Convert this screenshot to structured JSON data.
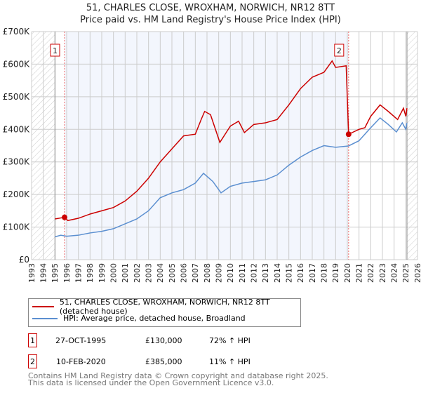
{
  "chart_data": {
    "type": "line",
    "title": "51, CHARLES CLOSE, WROXHAM, NORWICH, NR12 8TT",
    "subtitle": "Price paid vs. HM Land Registry's House Price Index (HPI)",
    "xlim": [
      1993,
      2026
    ],
    "ylim": [
      0,
      700000
    ],
    "x_ticks": [
      "1993",
      "1994",
      "1995",
      "1996",
      "1997",
      "1998",
      "1999",
      "2000",
      "2001",
      "2002",
      "2003",
      "2004",
      "2005",
      "2006",
      "2007",
      "2008",
      "2009",
      "2010",
      "2011",
      "2012",
      "2013",
      "2014",
      "2015",
      "2016",
      "2017",
      "2018",
      "2019",
      "2020",
      "2021",
      "2022",
      "2023",
      "2024",
      "2025",
      "2026"
    ],
    "y_ticks": [
      {
        "v": 0,
        "label": "£0"
      },
      {
        "v": 100000,
        "label": "£100K"
      },
      {
        "v": 200000,
        "label": "£200K"
      },
      {
        "v": 300000,
        "label": "£300K"
      },
      {
        "v": 400000,
        "label": "£400K"
      },
      {
        "v": 500000,
        "label": "£500K"
      },
      {
        "v": 600000,
        "label": "£600K"
      },
      {
        "v": 700000,
        "label": "£700K"
      }
    ],
    "grid": true,
    "series": [
      {
        "name": "51, CHARLES CLOSE, WROXHAM, NORWICH, NR12 8TT (detached house)",
        "color": "#cc0000",
        "x": [
          1995.0,
          1995.5,
          1995.82,
          1996.1,
          1997,
          1998,
          1999,
          2000,
          2001,
          2002,
          2003,
          2004,
          2005,
          2006,
          2007,
          2007.5,
          2007.8,
          2008.3,
          2009.1,
          2010,
          2010.7,
          2011.2,
          2012,
          2013,
          2014,
          2015,
          2016,
          2017,
          2018,
          2018.7,
          2019,
          2019.9,
          2020.11,
          2021,
          2021.5,
          2022,
          2022.8,
          2023.5,
          2024.3,
          2024.8,
          2025,
          2025.1
        ],
        "y": [
          125000,
          128000,
          130000,
          120000,
          127000,
          140000,
          150000,
          160000,
          180000,
          210000,
          250000,
          300000,
          340000,
          380000,
          385000,
          430000,
          455000,
          445000,
          360000,
          410000,
          425000,
          390000,
          415000,
          420000,
          430000,
          475000,
          525000,
          560000,
          575000,
          610000,
          590000,
          595000,
          385000,
          400000,
          405000,
          440000,
          475000,
          455000,
          430000,
          465000,
          440000,
          465000
        ]
      },
      {
        "name": "HPI: Average price, detached house, Broadland",
        "color": "#5b8fd0",
        "x": [
          1995.0,
          1995.5,
          1996,
          1997,
          1998,
          1999,
          2000,
          2001,
          2002,
          2003,
          2004,
          2005,
          2006,
          2007,
          2007.7,
          2008.5,
          2009.2,
          2010,
          2011,
          2012,
          2013,
          2014,
          2015,
          2016,
          2017,
          2018,
          2019,
          2020.1,
          2021,
          2022,
          2022.8,
          2023.5,
          2024.2,
          2024.7,
          2025,
          2025.1
        ],
        "y": [
          70000,
          75000,
          72000,
          75000,
          82000,
          87000,
          95000,
          110000,
          125000,
          150000,
          190000,
          205000,
          215000,
          235000,
          265000,
          240000,
          205000,
          225000,
          235000,
          240000,
          245000,
          260000,
          290000,
          315000,
          335000,
          350000,
          345000,
          349000,
          365000,
          405000,
          435000,
          415000,
          392000,
          420000,
          400000,
          420000
        ]
      }
    ],
    "sales": [
      {
        "id": "1",
        "x": 1995.82,
        "y": 130000
      },
      {
        "id": "2",
        "x": 2020.11,
        "y": 385000
      }
    ]
  },
  "legend": {
    "property": "51, CHARLES CLOSE, WROXHAM, NORWICH, NR12 8TT (detached house)",
    "hpi": "HPI: Average price, detached house, Broadland"
  },
  "transactions": [
    {
      "id": "1",
      "date": "27-OCT-1995",
      "price": "£130,000",
      "hpi": "72% ↑ HPI"
    },
    {
      "id": "2",
      "date": "10-FEB-2020",
      "price": "£385,000",
      "hpi": "11% ↑ HPI"
    }
  ],
  "footer": [
    "Contains HM Land Registry data © Crown copyright and database right 2025.",
    "This data is licensed under the Open Government Licence v3.0."
  ]
}
